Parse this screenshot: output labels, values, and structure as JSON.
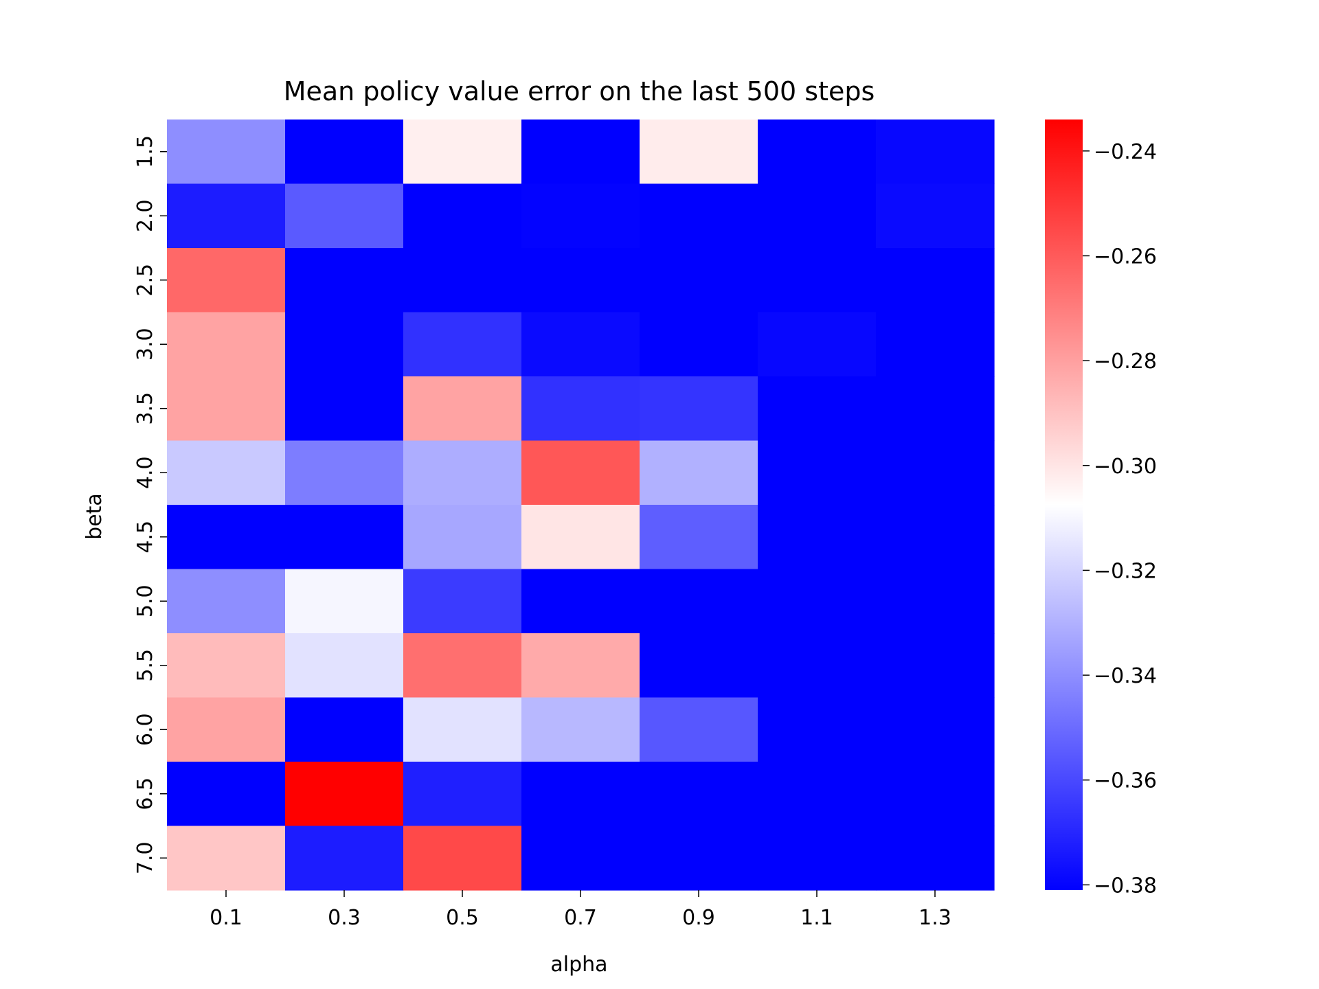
{
  "chart_data": {
    "type": "heatmap",
    "title": "Mean policy value error on the last 500 steps",
    "xlabel": "alpha",
    "ylabel": "beta",
    "x": [
      "0.1",
      "0.3",
      "0.5",
      "0.7",
      "0.9",
      "1.1",
      "1.3"
    ],
    "y": [
      "1.5",
      "2.0",
      "2.5",
      "3.0",
      "3.5",
      "4.0",
      "4.5",
      "5.0",
      "5.5",
      "6.0",
      "6.5",
      "7.0"
    ],
    "values": [
      [
        -0.34,
        -0.381,
        -0.303,
        -0.381,
        -0.302,
        -0.381,
        -0.379
      ],
      [
        -0.373,
        -0.355,
        -0.381,
        -0.38,
        -0.381,
        -0.381,
        -0.378
      ],
      [
        -0.264,
        -0.381,
        -0.381,
        -0.381,
        -0.381,
        -0.381,
        -0.381
      ],
      [
        -0.281,
        -0.381,
        -0.367,
        -0.378,
        -0.381,
        -0.379,
        -0.381
      ],
      [
        -0.281,
        -0.381,
        -0.281,
        -0.367,
        -0.366,
        -0.381,
        -0.381
      ],
      [
        -0.323,
        -0.345,
        -0.331,
        -0.259,
        -0.33,
        -0.381,
        -0.381
      ],
      [
        -0.381,
        -0.381,
        -0.333,
        -0.3,
        -0.354,
        -0.381,
        -0.381
      ],
      [
        -0.34,
        -0.31,
        -0.364,
        -0.381,
        -0.381,
        -0.381,
        -0.381
      ],
      [
        -0.288,
        -0.316,
        -0.266,
        -0.283,
        -0.381,
        -0.381,
        -0.381
      ],
      [
        -0.281,
        -0.381,
        -0.316,
        -0.328,
        -0.356,
        -0.381,
        -0.381
      ],
      [
        -0.381,
        -0.234,
        -0.372,
        -0.381,
        -0.381,
        -0.381,
        -0.381
      ],
      [
        -0.291,
        -0.373,
        -0.255,
        -0.381,
        -0.381,
        -0.381,
        -0.381
      ]
    ],
    "colorbar": {
      "vmin": -0.381,
      "vmax": -0.234,
      "colors": [
        "#0000ff",
        "#ffffff",
        "#ff0000"
      ],
      "ticks": [
        -0.24,
        -0.26,
        -0.28,
        -0.3,
        -0.32,
        -0.34,
        -0.36,
        -0.38
      ],
      "tick_labels": [
        "−0.24",
        "−0.26",
        "−0.28",
        "−0.30",
        "−0.32",
        "−0.34",
        "−0.36",
        "−0.38"
      ]
    },
    "grid": false,
    "legend": "colorbar-right"
  }
}
